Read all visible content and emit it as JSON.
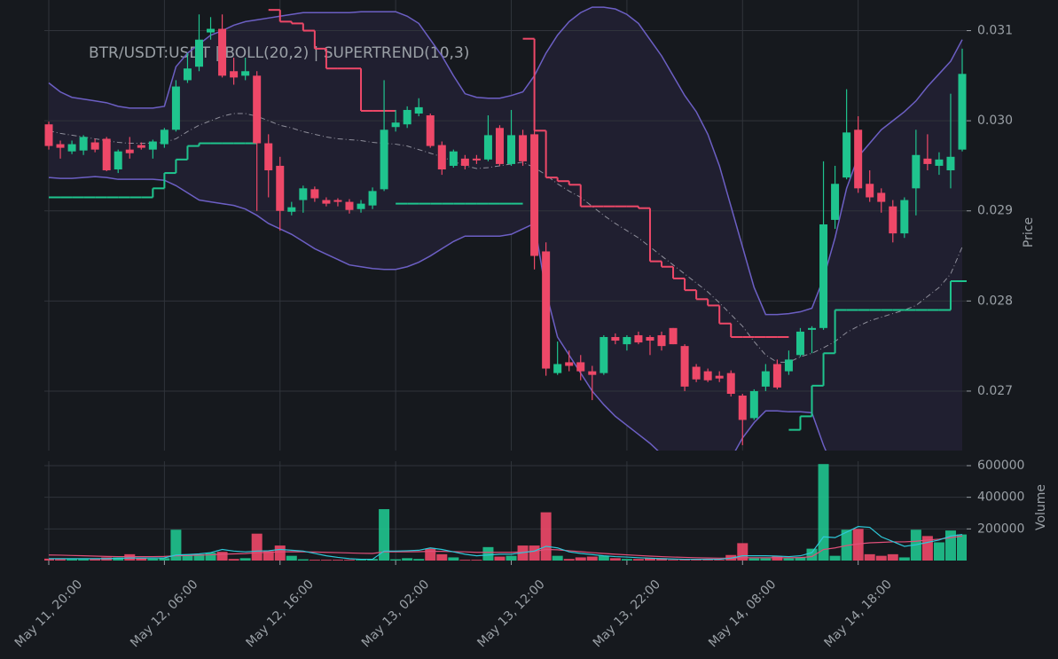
{
  "chart_data": {
    "type": "candlestick",
    "title": "BTR/USDT:USDT | BOLL(20,2) | SUPERTREND(10,3)",
    "categories": [
      "May 11, 20:00",
      null,
      null,
      null,
      null,
      null,
      null,
      null,
      null,
      null,
      "May 12, 06:00",
      null,
      null,
      null,
      null,
      null,
      null,
      null,
      null,
      null,
      "May 12, 16:00",
      null,
      null,
      null,
      null,
      null,
      null,
      null,
      null,
      null,
      "May 13, 02:00",
      null,
      null,
      null,
      null,
      null,
      null,
      null,
      null,
      null,
      "May 13, 12:00",
      null,
      null,
      null,
      null,
      null,
      null,
      null,
      null,
      null,
      "May 13, 22:00",
      null,
      null,
      null,
      null,
      null,
      null,
      null,
      null,
      null,
      "May 14, 08:00",
      null,
      null,
      null,
      null,
      null,
      null,
      null,
      null,
      null,
      "May 14, 18:00",
      null,
      null,
      null,
      null,
      null,
      null,
      null,
      null,
      null
    ],
    "open": [
      0.02996,
      0.02974,
      0.02966,
      0.02967,
      0.02976,
      0.0298,
      0.02946,
      0.02968,
      0.02973,
      0.02968,
      0.02974,
      0.0299,
      0.03045,
      0.0306,
      0.03098,
      0.03102,
      0.03055,
      0.0305,
      0.0305,
      0.02975,
      0.0295,
      0.02899,
      0.02912,
      0.02924,
      0.02912,
      0.02912,
      0.0291,
      0.02902,
      0.02906,
      0.02924,
      0.02993,
      0.02996,
      0.03008,
      0.03006,
      0.02973,
      0.0295,
      0.02958,
      0.02958,
      0.02957,
      0.02992,
      0.02952,
      0.02984,
      0.02985,
      0.02855,
      0.0272,
      0.02732,
      0.02732,
      0.02722,
      0.0272,
      0.0276,
      0.02752,
      0.02762,
      0.0276,
      0.02762,
      0.0277,
      0.0275,
      0.02727,
      0.02722,
      0.02717,
      0.0272,
      0.02695,
      0.0267,
      0.02705,
      0.0273,
      0.02722,
      0.0274,
      0.02768,
      0.0277,
      0.0289,
      0.02937,
      0.0299,
      0.0293,
      0.0292,
      0.02905,
      0.02875,
      0.02925,
      0.02958,
      0.0295,
      0.02945,
      0.02968
    ],
    "high": [
      0.02999,
      0.02978,
      0.02978,
      0.02984,
      0.0298,
      0.02982,
      0.02968,
      0.02982,
      0.02976,
      0.02979,
      0.02992,
      0.03045,
      0.03075,
      0.03118,
      0.03115,
      0.03118,
      0.0307,
      0.0307,
      0.03055,
      0.02985,
      0.0296,
      0.0291,
      0.02928,
      0.02927,
      0.02915,
      0.02914,
      0.02913,
      0.02912,
      0.02926,
      0.03045,
      0.03012,
      0.03016,
      0.03025,
      0.03008,
      0.02977,
      0.02968,
      0.02962,
      0.02962,
      0.03006,
      0.02995,
      0.03012,
      0.0299,
      0.0299,
      0.02865,
      0.02755,
      0.02745,
      0.0274,
      0.02728,
      0.02762,
      0.02764,
      0.02762,
      0.02766,
      0.02762,
      0.02766,
      0.0277,
      0.02752,
      0.0273,
      0.02725,
      0.02722,
      0.02723,
      0.02697,
      0.02702,
      0.0273,
      0.02735,
      0.02745,
      0.0277,
      0.02772,
      0.02955,
      0.0295,
      0.03035,
      0.03005,
      0.02945,
      0.02925,
      0.02912,
      0.02915,
      0.0299,
      0.02985,
      0.02965,
      0.0303,
      0.0308
    ],
    "low": [
      0.02968,
      0.02958,
      0.02963,
      0.02962,
      0.02965,
      0.02944,
      0.02942,
      0.02958,
      0.02968,
      0.02958,
      0.0297,
      0.02988,
      0.03042,
      0.03055,
      0.0309,
      0.03048,
      0.0304,
      0.03045,
      0.029,
      0.02915,
      0.02878,
      0.02895,
      0.02898,
      0.0291,
      0.02905,
      0.02905,
      0.02897,
      0.02898,
      0.02902,
      0.02922,
      0.02988,
      0.02992,
      0.03005,
      0.0297,
      0.0294,
      0.02948,
      0.02946,
      0.02952,
      0.02955,
      0.0295,
      0.0295,
      0.0295,
      0.02835,
      0.02717,
      0.02718,
      0.02722,
      0.02712,
      0.0269,
      0.02718,
      0.02752,
      0.02745,
      0.02752,
      0.0274,
      0.02745,
      0.02752,
      0.027,
      0.0271,
      0.0271,
      0.0271,
      0.02694,
      0.0264,
      0.02668,
      0.027,
      0.02702,
      0.02718,
      0.02738,
      0.02742,
      0.02768,
      0.0288,
      0.02935,
      0.0292,
      0.0291,
      0.02898,
      0.02865,
      0.0287,
      0.02895,
      0.02945,
      0.0294,
      0.02925,
      0.02966
    ],
    "close": [
      0.02972,
      0.0297,
      0.02974,
      0.02982,
      0.02968,
      0.02945,
      0.02966,
      0.02964,
      0.0297,
      0.02977,
      0.0299,
      0.03038,
      0.03058,
      0.0309,
      0.03102,
      0.0305,
      0.03048,
      0.03055,
      0.02975,
      0.02945,
      0.029,
      0.02904,
      0.02925,
      0.02914,
      0.02908,
      0.0291,
      0.02901,
      0.02908,
      0.02922,
      0.0299,
      0.02998,
      0.03012,
      0.03015,
      0.02972,
      0.02946,
      0.02966,
      0.0295,
      0.02956,
      0.02984,
      0.02952,
      0.02984,
      0.02955,
      0.0285,
      0.02725,
      0.0273,
      0.02728,
      0.02722,
      0.02718,
      0.0276,
      0.02756,
      0.0276,
      0.02754,
      0.02756,
      0.0275,
      0.02752,
      0.02705,
      0.02713,
      0.02712,
      0.02714,
      0.02697,
      0.02668,
      0.027,
      0.02722,
      0.02704,
      0.02735,
      0.02766,
      0.0277,
      0.02885,
      0.0293,
      0.02987,
      0.02925,
      0.02915,
      0.0291,
      0.02875,
      0.02912,
      0.02962,
      0.02952,
      0.02957,
      0.0296,
      0.03052
    ],
    "up_color": "#1fc48e",
    "down_color": "#ee4868",
    "ylim": [
      0.02634,
      0.03134
    ],
    "yticks": [
      0.027,
      0.028,
      0.029,
      {
        "value": 0.03,
        "label": "0.030"
      },
      0.031
    ],
    "ylabel": "Price",
    "grid": true,
    "bollinger": {
      "color": "#6c5fc4",
      "middle_color": "#8e8e9a",
      "fill": "#201f30",
      "upper": [
        0.03042,
        0.03032,
        0.03026,
        0.03024,
        0.03022,
        0.0302,
        0.03016,
        0.03014,
        0.03014,
        0.03014,
        0.03016,
        0.0306,
        0.03075,
        0.03085,
        0.03095,
        0.031,
        0.03106,
        0.0311,
        0.03112,
        0.03114,
        0.03116,
        0.03118,
        0.0312,
        0.0312,
        0.0312,
        0.0312,
        0.0312,
        0.03121,
        0.03121,
        0.03121,
        0.03121,
        0.03116,
        0.03108,
        0.0309,
        0.03072,
        0.0305,
        0.0303,
        0.03026,
        0.03025,
        0.03025,
        0.03028,
        0.03032,
        0.0305,
        0.03075,
        0.03095,
        0.0311,
        0.0312,
        0.03126,
        0.03126,
        0.03124,
        0.03118,
        0.03108,
        0.0309,
        0.03072,
        0.0305,
        0.03028,
        0.0301,
        0.02985,
        0.0295,
        0.02905,
        0.0286,
        0.02815,
        0.02785,
        0.02785,
        0.02786,
        0.02788,
        0.02792,
        0.02825,
        0.0287,
        0.02925,
        0.0296,
        0.02975,
        0.0299,
        0.03,
        0.0301,
        0.03022,
        0.03038,
        0.03052,
        0.03066,
        0.0309
      ],
      "middle": [
        0.02989,
        0.02986,
        0.02984,
        0.02982,
        0.0298,
        0.02978,
        0.02976,
        0.02975,
        0.02975,
        0.02975,
        0.02976,
        0.0298,
        0.02988,
        0.02995,
        0.03,
        0.03005,
        0.03008,
        0.03008,
        0.03005,
        0.03,
        0.02995,
        0.02992,
        0.02988,
        0.02985,
        0.02982,
        0.0298,
        0.02979,
        0.02978,
        0.02976,
        0.02975,
        0.02974,
        0.02972,
        0.02968,
        0.02964,
        0.0296,
        0.02955,
        0.0295,
        0.02947,
        0.02948,
        0.0295,
        0.02952,
        0.02954,
        0.02948,
        0.0294,
        0.0293,
        0.02922,
        0.02915,
        0.02905,
        0.02895,
        0.02886,
        0.02878,
        0.0287,
        0.0286,
        0.0285,
        0.0284,
        0.0283,
        0.0282,
        0.0281,
        0.02798,
        0.02785,
        0.02772,
        0.02755,
        0.0274,
        0.02732,
        0.02732,
        0.02738,
        0.02742,
        0.02748,
        0.02755,
        0.02765,
        0.02772,
        0.02778,
        0.02782,
        0.02786,
        0.0279,
        0.02795,
        0.02805,
        0.02815,
        0.0283,
        0.0286
      ],
      "lower": [
        0.02937,
        0.02936,
        0.02936,
        0.02937,
        0.02938,
        0.02937,
        0.02935,
        0.02935,
        0.02935,
        0.02935,
        0.02934,
        0.02928,
        0.0292,
        0.02912,
        0.0291,
        0.02908,
        0.02906,
        0.02902,
        0.02895,
        0.02886,
        0.0288,
        0.02874,
        0.02866,
        0.02858,
        0.02852,
        0.02846,
        0.0284,
        0.02838,
        0.02836,
        0.02835,
        0.02835,
        0.02838,
        0.02843,
        0.0285,
        0.02858,
        0.02866,
        0.02872,
        0.02872,
        0.02872,
        0.02872,
        0.02874,
        0.0288,
        0.02886,
        0.0281,
        0.0276,
        0.0274,
        0.0272,
        0.027,
        0.02685,
        0.02672,
        0.02662,
        0.02652,
        0.02642,
        0.0263,
        0.0262,
        0.02612,
        0.02605,
        0.026,
        0.0261,
        0.02625,
        0.02648,
        0.02665,
        0.02678,
        0.02678,
        0.02677,
        0.02677,
        0.02676,
        0.0264,
        0.0261,
        0.0259,
        0.0258,
        0.02575,
        0.0257,
        0.02572,
        0.02575,
        0.0258,
        0.0259,
        0.026,
        0.02615,
        0.02632
      ]
    },
    "supertrend": {
      "up_color": "#1fc48e",
      "down_color": "#ee4868",
      "up": [
        0.02915,
        0.02915,
        0.02915,
        0.02915,
        0.02915,
        0.02915,
        0.02915,
        0.02915,
        0.02915,
        0.02925,
        0.02942,
        0.02957,
        0.02972,
        0.02975,
        0.02975,
        0.02975,
        0.02975,
        0.02975,
        null,
        null,
        null,
        null,
        null,
        null,
        null,
        null,
        null,
        null,
        null,
        null,
        0.02908,
        0.02908,
        0.02908,
        0.02908,
        0.02908,
        0.02908,
        0.02908,
        0.02908,
        0.02908,
        0.02908,
        0.02908,
        null,
        null,
        null,
        null,
        null,
        null,
        null,
        null,
        null,
        null,
        null,
        null,
        null,
        null,
        null,
        null,
        null,
        null,
        null,
        null,
        null,
        null,
        null,
        0.02657,
        0.02672,
        0.02706,
        0.02742,
        0.0279,
        0.0279,
        0.0279,
        0.0279,
        0.0279,
        0.0279,
        0.0279,
        0.0279,
        0.0279,
        0.0279,
        0.02822,
        0.02822
      ],
      "down": [
        null,
        null,
        null,
        null,
        null,
        null,
        null,
        null,
        null,
        null,
        null,
        null,
        null,
        null,
        null,
        null,
        null,
        null,
        null,
        0.03123,
        0.0311,
        0.03108,
        0.031,
        0.0308,
        0.03058,
        0.03058,
        0.03058,
        0.03011,
        0.03011,
        0.03011,
        null,
        null,
        null,
        null,
        null,
        null,
        null,
        null,
        null,
        null,
        null,
        0.03091,
        0.02989,
        0.02937,
        0.02933,
        0.02929,
        0.02905,
        0.02905,
        0.02905,
        0.02905,
        0.02905,
        0.02903,
        0.02844,
        0.02838,
        0.02825,
        0.02812,
        0.02802,
        0.02795,
        0.02775,
        0.0276,
        0.0276,
        0.0276,
        0.0276,
        0.0276,
        null,
        null,
        null,
        null,
        null,
        null,
        null,
        null,
        null,
        null,
        null,
        null,
        null,
        null,
        null,
        null
      ]
    },
    "volume": {
      "values": [
        12000,
        8000,
        8000,
        8000,
        10000,
        20000,
        20000,
        40000,
        15000,
        12000,
        15000,
        195000,
        40000,
        40000,
        50000,
        55000,
        10000,
        15000,
        170000,
        60000,
        95000,
        30000,
        8000,
        5000,
        5000,
        5000,
        5000,
        5000,
        10000,
        325000,
        8000,
        15000,
        10000,
        75000,
        40000,
        20000,
        5000,
        5000,
        85000,
        25000,
        30000,
        95000,
        95000,
        305000,
        30000,
        10000,
        20000,
        25000,
        30000,
        15000,
        10000,
        10000,
        15000,
        15000,
        5000,
        5000,
        5000,
        5000,
        5000,
        35000,
        110000,
        15000,
        15000,
        25000,
        15000,
        20000,
        75000,
        610000,
        30000,
        195000,
        200000,
        40000,
        30000,
        40000,
        20000,
        195000,
        155000,
        115000,
        190000,
        165000
      ],
      "ylim": [
        0,
        628000
      ],
      "yticks": [
        200000,
        400000,
        600000
      ],
      "ylabel": "Volume",
      "ma_color": "#2ec8d8",
      "ma": [
        12000,
        12000,
        12000,
        12000,
        12000,
        12000,
        14000,
        16000,
        16000,
        16000,
        17000,
        35000,
        38000,
        42000,
        50000,
        70000,
        60000,
        55000,
        60000,
        62000,
        70000,
        65000,
        60000,
        45000,
        30000,
        20000,
        12000,
        8000,
        8000,
        60000,
        60000,
        62000,
        65000,
        80000,
        70000,
        55000,
        40000,
        30000,
        35000,
        40000,
        40000,
        50000,
        60000,
        90000,
        80000,
        55000,
        45000,
        38000,
        30000,
        25000,
        22000,
        18000,
        15000,
        12000,
        10000,
        8000,
        8000,
        8000,
        8000,
        15000,
        30000,
        30000,
        30000,
        28000,
        25000,
        30000,
        50000,
        150000,
        145000,
        180000,
        215000,
        210000,
        150000,
        120000,
        90000,
        100000,
        115000,
        130000,
        155000,
        165000
      ],
      "ma2_color": "#e0507a",
      "ma2": [
        35000,
        34000,
        32000,
        30000,
        28000,
        26000,
        25000,
        25000,
        25000,
        25000,
        26000,
        30000,
        32000,
        34000,
        36000,
        40000,
        42000,
        44000,
        50000,
        52000,
        55000,
        56000,
        55000,
        54000,
        52000,
        50000,
        48000,
        46000,
        45000,
        55000,
        55000,
        55000,
        56000,
        58000,
        58000,
        56000,
        55000,
        52000,
        52000,
        52000,
        52000,
        55000,
        58000,
        70000,
        68000,
        62000,
        56000,
        50000,
        45000,
        40000,
        36000,
        32000,
        28000,
        25000,
        22000,
        20000,
        18000,
        16000,
        15000,
        15000,
        18000,
        18000,
        18000,
        18000,
        18000,
        19000,
        25000,
        70000,
        80000,
        95000,
        105000,
        112000,
        115000,
        118000,
        118000,
        122000,
        130000,
        135000,
        145000,
        155000
      ]
    }
  }
}
